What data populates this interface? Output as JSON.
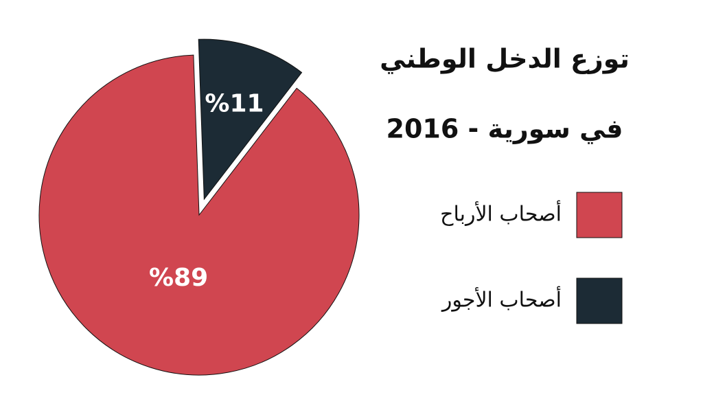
{
  "chart_data": {
    "type": "pie",
    "title": [
      "توزع الدخل الوطني",
      "في سورية - 2016"
    ],
    "categories": [
      "أصحاب الأرباح",
      "أصحاب الأجور"
    ],
    "values": [
      89,
      11
    ],
    "value_labels": [
      "%89",
      "%11"
    ],
    "colors": [
      "#d04650",
      "#1c2b35"
    ]
  }
}
